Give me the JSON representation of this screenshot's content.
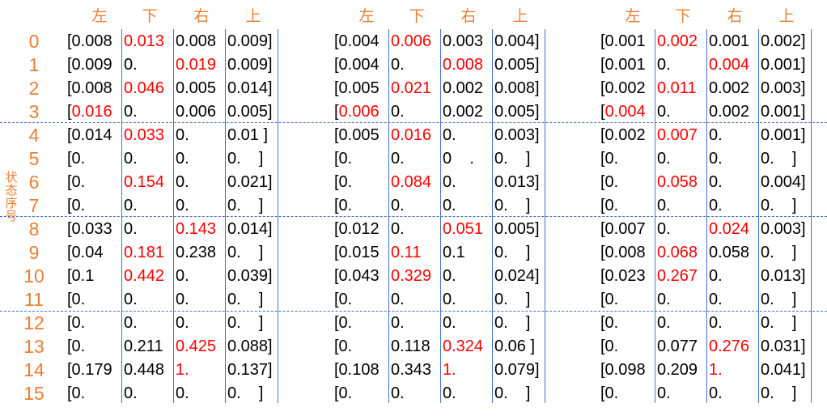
{
  "headers": [
    "左",
    "下",
    "右",
    "上"
  ],
  "row_axis_label": "状态序号",
  "row_labels": [
    "0",
    "1",
    "2",
    "3",
    "4",
    "5",
    "6",
    "7",
    "8",
    "9",
    "10",
    "11",
    "12",
    "13",
    "14",
    "15"
  ],
  "colors": {
    "label": "#ED7D31",
    "highlight": "#FF0000",
    "text": "#000000",
    "grid": "#4472C4"
  },
  "tables": [
    {
      "rows": [
        [
          {
            "v": "[0.008",
            "h": false
          },
          {
            "v": "0.013",
            "h": true
          },
          {
            "v": "0.008",
            "h": false
          },
          {
            "v": "0.009]",
            "h": false
          }
        ],
        [
          {
            "v": "[0.009",
            "h": false
          },
          {
            "v": "0.",
            "h": false
          },
          {
            "v": "0.019",
            "h": true
          },
          {
            "v": "0.009]",
            "h": false
          }
        ],
        [
          {
            "v": "[0.008",
            "h": false
          },
          {
            "v": "0.046",
            "h": true
          },
          {
            "v": "0.005",
            "h": false
          },
          {
            "v": "0.014]",
            "h": false
          }
        ],
        [
          {
            "v": "[",
            "h": false,
            "r": "0.016"
          },
          {
            "v": "0.",
            "h": false
          },
          {
            "v": "0.006",
            "h": false
          },
          {
            "v": "0.005]",
            "h": false
          }
        ],
        [
          {
            "v": "[0.014",
            "h": false
          },
          {
            "v": "0.033",
            "h": true
          },
          {
            "v": "0.",
            "h": false
          },
          {
            "v": "0.01 ]",
            "h": false
          }
        ],
        [
          {
            "v": "[0.",
            "h": false
          },
          {
            "v": "0.",
            "h": false
          },
          {
            "v": "0.",
            "h": false
          },
          {
            "v": "0.    ]",
            "h": false
          }
        ],
        [
          {
            "v": "[0.",
            "h": false
          },
          {
            "v": "0.154",
            "h": true
          },
          {
            "v": "0.",
            "h": false
          },
          {
            "v": "0.021]",
            "h": false
          }
        ],
        [
          {
            "v": "[0.",
            "h": false
          },
          {
            "v": "0.",
            "h": false
          },
          {
            "v": "0.",
            "h": false
          },
          {
            "v": "0.    ]",
            "h": false
          }
        ],
        [
          {
            "v": "[0.033",
            "h": false
          },
          {
            "v": "0.",
            "h": false
          },
          {
            "v": "0.143",
            "h": true
          },
          {
            "v": "0.014]",
            "h": false
          }
        ],
        [
          {
            "v": "[0.04",
            "h": false
          },
          {
            "v": "0.181",
            "h": true
          },
          {
            "v": "0.238",
            "h": false
          },
          {
            "v": "0.    ]",
            "h": false
          }
        ],
        [
          {
            "v": "[0.1",
            "h": false
          },
          {
            "v": "0.442",
            "h": true
          },
          {
            "v": "0.",
            "h": false
          },
          {
            "v": "0.039]",
            "h": false
          }
        ],
        [
          {
            "v": "[0.",
            "h": false
          },
          {
            "v": "0.",
            "h": false
          },
          {
            "v": "0.",
            "h": false
          },
          {
            "v": "0.    ]",
            "h": false
          }
        ],
        [
          {
            "v": "[0.",
            "h": false
          },
          {
            "v": "0.",
            "h": false
          },
          {
            "v": "0.",
            "h": false
          },
          {
            "v": "0.    ]",
            "h": false
          }
        ],
        [
          {
            "v": "[0.",
            "h": false
          },
          {
            "v": "0.211",
            "h": false
          },
          {
            "v": "0.425",
            "h": true
          },
          {
            "v": "0.088]",
            "h": false
          }
        ],
        [
          {
            "v": "[0.179",
            "h": false
          },
          {
            "v": "0.448",
            "h": false
          },
          {
            "v": "1.",
            "h": true
          },
          {
            "v": "0.137]",
            "h": false
          }
        ],
        [
          {
            "v": "[0.",
            "h": false
          },
          {
            "v": "0.",
            "h": false
          },
          {
            "v": "0.",
            "h": false
          },
          {
            "v": "0.    ]",
            "h": false
          }
        ]
      ]
    },
    {
      "rows": [
        [
          {
            "v": "[0.004",
            "h": false
          },
          {
            "v": "0.006",
            "h": true
          },
          {
            "v": "0.003",
            "h": false
          },
          {
            "v": "0.004]",
            "h": false
          }
        ],
        [
          {
            "v": "[0.004",
            "h": false
          },
          {
            "v": "0.",
            "h": false
          },
          {
            "v": "0.008",
            "h": true
          },
          {
            "v": "0.005]",
            "h": false
          }
        ],
        [
          {
            "v": "[0.005",
            "h": false
          },
          {
            "v": "0.021",
            "h": true
          },
          {
            "v": "0.002",
            "h": false
          },
          {
            "v": "0.008]",
            "h": false
          }
        ],
        [
          {
            "v": "[",
            "h": false,
            "r": "0.006"
          },
          {
            "v": "0.",
            "h": false
          },
          {
            "v": "0.002",
            "h": false
          },
          {
            "v": "0.005]",
            "h": false
          }
        ],
        [
          {
            "v": "[0.005",
            "h": false
          },
          {
            "v": "0.016",
            "h": true
          },
          {
            "v": "0.",
            "h": false
          },
          {
            "v": "0.003]",
            "h": false
          }
        ],
        [
          {
            "v": "[0.",
            "h": false
          },
          {
            "v": "0.",
            "h": false
          },
          {
            "v": "0    .",
            "h": false
          },
          {
            "v": "0.    ]",
            "h": false
          }
        ],
        [
          {
            "v": "[0.",
            "h": false
          },
          {
            "v": "0.084",
            "h": true
          },
          {
            "v": "0.",
            "h": false
          },
          {
            "v": "0.013]",
            "h": false
          }
        ],
        [
          {
            "v": "[0.",
            "h": false
          },
          {
            "v": "0.",
            "h": false
          },
          {
            "v": "0.",
            "h": false
          },
          {
            "v": "0.    ]",
            "h": false
          }
        ],
        [
          {
            "v": "[0.012",
            "h": false
          },
          {
            "v": "0.",
            "h": false
          },
          {
            "v": "0.051",
            "h": true
          },
          {
            "v": "0.005]",
            "h": false
          }
        ],
        [
          {
            "v": "[0.015",
            "h": false
          },
          {
            "v": "0.11",
            "h": true
          },
          {
            "v": "0.1",
            "h": false
          },
          {
            "v": "0.    ]",
            "h": false
          }
        ],
        [
          {
            "v": "[0.043",
            "h": false
          },
          {
            "v": "0.329",
            "h": true
          },
          {
            "v": "0.",
            "h": false
          },
          {
            "v": "0.024]",
            "h": false
          }
        ],
        [
          {
            "v": "[0.",
            "h": false
          },
          {
            "v": "0.",
            "h": false
          },
          {
            "v": "0.",
            "h": false
          },
          {
            "v": "0.    ]",
            "h": false
          }
        ],
        [
          {
            "v": "[0.",
            "h": false
          },
          {
            "v": "0.",
            "h": false
          },
          {
            "v": "0.",
            "h": false
          },
          {
            "v": "0.    ]",
            "h": false
          }
        ],
        [
          {
            "v": "[0.",
            "h": false
          },
          {
            "v": "0.118",
            "h": false
          },
          {
            "v": "0.324",
            "h": true
          },
          {
            "v": "0.06 ]",
            "h": false
          }
        ],
        [
          {
            "v": "[0.108",
            "h": false
          },
          {
            "v": "0.343",
            "h": false
          },
          {
            "v": "1.",
            "h": true
          },
          {
            "v": "0.079]",
            "h": false
          }
        ],
        [
          {
            "v": "[0.",
            "h": false
          },
          {
            "v": "0.",
            "h": false
          },
          {
            "v": "0.",
            "h": false
          },
          {
            "v": "0.    ]",
            "h": false
          }
        ]
      ]
    },
    {
      "rows": [
        [
          {
            "v": "[0.001",
            "h": false
          },
          {
            "v": "0.002",
            "h": true
          },
          {
            "v": "0.001",
            "h": false
          },
          {
            "v": "0.002]",
            "h": false
          }
        ],
        [
          {
            "v": "[0.001",
            "h": false
          },
          {
            "v": "0.",
            "h": false
          },
          {
            "v": "0.004",
            "h": true
          },
          {
            "v": "0.001]",
            "h": false
          }
        ],
        [
          {
            "v": "[0.002",
            "h": false
          },
          {
            "v": "0.011",
            "h": true
          },
          {
            "v": "0.002",
            "h": false
          },
          {
            "v": "0.003]",
            "h": false
          }
        ],
        [
          {
            "v": "[",
            "h": false,
            "r": "0.004"
          },
          {
            "v": "0.",
            "h": false
          },
          {
            "v": "0.002",
            "h": false
          },
          {
            "v": "0.001]",
            "h": false
          }
        ],
        [
          {
            "v": "[0.002",
            "h": false
          },
          {
            "v": "0.007",
            "h": true
          },
          {
            "v": "0.",
            "h": false
          },
          {
            "v": "0.001]",
            "h": false
          }
        ],
        [
          {
            "v": "[0.",
            "h": false
          },
          {
            "v": "0.",
            "h": false
          },
          {
            "v": "0.",
            "h": false
          },
          {
            "v": "0.    ]",
            "h": false
          }
        ],
        [
          {
            "v": "[0.",
            "h": false
          },
          {
            "v": "0.058",
            "h": true
          },
          {
            "v": "0.",
            "h": false
          },
          {
            "v": "0.004]",
            "h": false
          }
        ],
        [
          {
            "v": "[0.",
            "h": false
          },
          {
            "v": "0.",
            "h": false
          },
          {
            "v": "0.",
            "h": false
          },
          {
            "v": "0.    ]",
            "h": false
          }
        ],
        [
          {
            "v": "[0.007",
            "h": false
          },
          {
            "v": "0.",
            "h": false
          },
          {
            "v": "0.024",
            "h": true
          },
          {
            "v": "0.003]",
            "h": false
          }
        ],
        [
          {
            "v": "[0.008",
            "h": false
          },
          {
            "v": "0.068",
            "h": true
          },
          {
            "v": "0.058",
            "h": false
          },
          {
            "v": "0.    ]",
            "h": false
          }
        ],
        [
          {
            "v": "[0.023",
            "h": false
          },
          {
            "v": "0.267",
            "h": true
          },
          {
            "v": "0.",
            "h": false
          },
          {
            "v": "0.013]",
            "h": false
          }
        ],
        [
          {
            "v": "[0.",
            "h": false
          },
          {
            "v": "0.",
            "h": false
          },
          {
            "v": "0.",
            "h": false
          },
          {
            "v": "0.    ]",
            "h": false
          }
        ],
        [
          {
            "v": "[0.",
            "h": false
          },
          {
            "v": "0.",
            "h": false
          },
          {
            "v": "0.",
            "h": false
          },
          {
            "v": "0.    ]",
            "h": false
          }
        ],
        [
          {
            "v": "[0.",
            "h": false
          },
          {
            "v": "0.077",
            "h": false
          },
          {
            "v": "0.276",
            "h": true
          },
          {
            "v": "0.031]",
            "h": false
          }
        ],
        [
          {
            "v": "[0.098",
            "h": false
          },
          {
            "v": "0.209",
            "h": false
          },
          {
            "v": "1.",
            "h": true
          },
          {
            "v": "0.041]",
            "h": false
          }
        ],
        [
          {
            "v": "[0.",
            "h": false
          },
          {
            "v": "0.",
            "h": false
          },
          {
            "v": "0.",
            "h": false
          },
          {
            "v": "0.    ]",
            "h": false
          }
        ]
      ]
    }
  ]
}
